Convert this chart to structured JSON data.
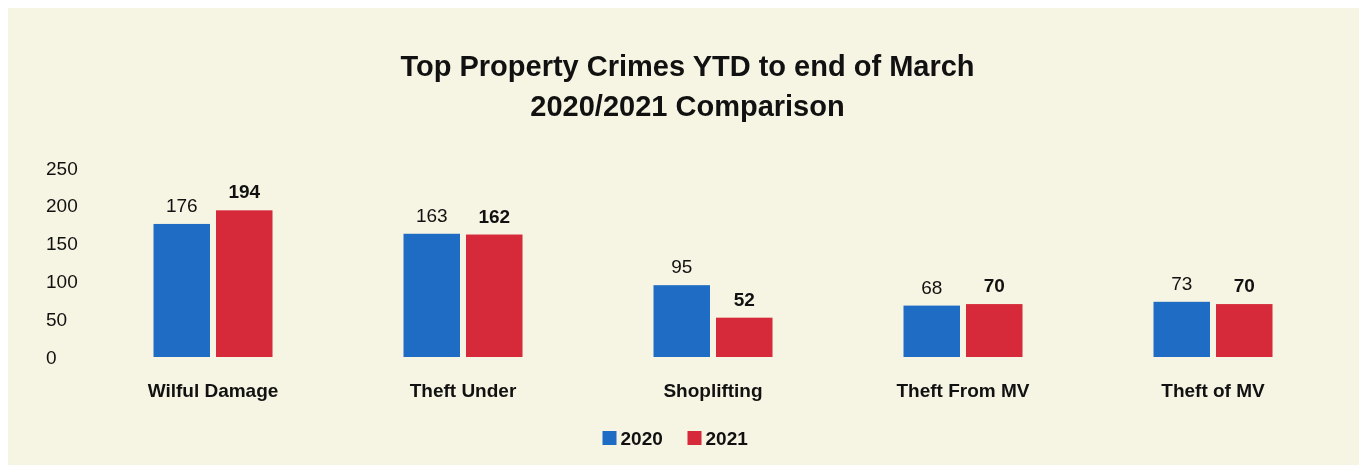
{
  "chart_data": {
    "type": "bar",
    "title": "Top Property Crimes YTD to end of March\n2020/2021 Comparison",
    "categories": [
      "Wilful Damage",
      "Theft Under",
      "Shoplifting",
      "Theft From MV",
      "Theft of MV"
    ],
    "series": [
      {
        "name": "2020",
        "color": "#1f6cc4",
        "values": [
          176,
          163,
          95,
          68,
          73
        ]
      },
      {
        "name": "2021",
        "color": "#d6293a",
        "values": [
          194,
          162,
          52,
          70,
          70
        ]
      }
    ],
    "ylim": [
      0,
      250
    ],
    "yticks": [
      0,
      50,
      100,
      150,
      200,
      250
    ],
    "grid": false,
    "data_labels": true,
    "legend": "bottom"
  }
}
